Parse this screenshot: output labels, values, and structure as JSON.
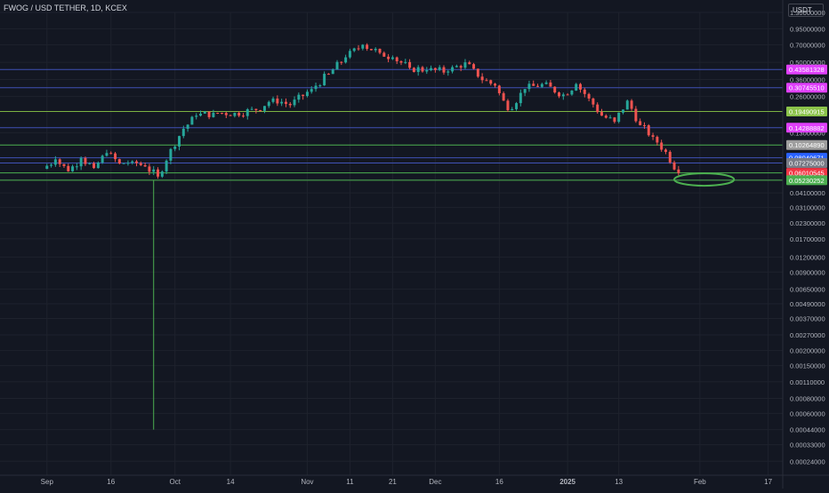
{
  "header": {
    "symbol": "FWOG / USD TETHER, 1D, KCEX",
    "currency": "USDT"
  },
  "colors": {
    "background": "#131722",
    "up": "#26a69a",
    "down": "#ef5350",
    "green_line": "#4caf50",
    "blue_line": "#3f51b5",
    "grid": "#1e222d"
  },
  "chart_data": {
    "type": "candlestick",
    "y_scale": "log",
    "y_range": [
      0.0002,
      1.3
    ],
    "x_range": [
      "2024-08-21",
      "2025-02-20"
    ],
    "y_ticks": [
      "1.30000000",
      "0.95000000",
      "0.70000000",
      "0.50000000",
      "0.36000000",
      "0.26000000",
      "0.13000000",
      "0.07300000",
      "0.05300000",
      "0.04100000",
      "0.03100000",
      "0.02300000",
      "0.01700000",
      "0.01200000",
      "0.00900000",
      "0.00650000",
      "0.00490000",
      "0.00370000",
      "0.00270000",
      "0.00200000",
      "0.00150000",
      "0.00110000",
      "0.00080000",
      "0.00060000",
      "0.00044000",
      "0.00033000",
      "0.00024000"
    ],
    "x_ticks": [
      {
        "label": "Sep",
        "date": "2024-09-01"
      },
      {
        "label": "16",
        "date": "2024-09-16"
      },
      {
        "label": "Oct",
        "date": "2024-10-01"
      },
      {
        "label": "14",
        "date": "2024-10-14"
      },
      {
        "label": "Nov",
        "date": "2024-11-01"
      },
      {
        "label": "11",
        "date": "2024-11-11"
      },
      {
        "label": "21",
        "date": "2024-11-21"
      },
      {
        "label": "Dec",
        "date": "2024-12-01"
      },
      {
        "label": "16",
        "date": "2024-12-16"
      },
      {
        "label": "2025",
        "date": "2025-01-01"
      },
      {
        "label": "13",
        "date": "2025-01-13"
      },
      {
        "label": "Feb",
        "date": "2025-02-01"
      },
      {
        "label": "17",
        "date": "2025-02-17"
      }
    ],
    "price_labels": [
      {
        "value": "0.43581328",
        "color": "#e040fb"
      },
      {
        "value": "0.30745510",
        "color": "#e040fb"
      },
      {
        "value": "0.19490915",
        "color": "#8bc34a"
      },
      {
        "value": "0.14288882",
        "color": "#e040fb"
      },
      {
        "value": "0.10264890",
        "color": "#9e9e9e"
      },
      {
        "value": "0.08040671",
        "color": "#2962ff"
      },
      {
        "value": "0.07275000",
        "color": "#787b86"
      },
      {
        "value": "0.06010545",
        "color": "#f23645"
      },
      {
        "value": "0.05230252",
        "color": "#4caf50"
      }
    ],
    "horizontal_lines": [
      {
        "value": 0.43581328,
        "color": "#3f51b5"
      },
      {
        "value": 0.3074551,
        "color": "#3f51b5"
      },
      {
        "value": 0.19490915,
        "color": "#7cb342"
      },
      {
        "value": 0.14288882,
        "color": "#3f51b5"
      },
      {
        "value": 0.1026489,
        "color": "#4caf50"
      },
      {
        "value": 0.08040671,
        "color": "#3f51b5"
      },
      {
        "value": 0.07275,
        "color": "#3f51b5"
      },
      {
        "value": 0.06010545,
        "color": "#4caf50"
      },
      {
        "value": 0.05230252,
        "color": "#4caf50"
      }
    ],
    "vertical_line": {
      "date": "2024-09-26",
      "from": 0.05230252,
      "to": 0.00044,
      "color": "#4caf50"
    },
    "ellipse": {
      "date_from": "2025-01-26",
      "date_to": "2025-02-09",
      "value": 0.053,
      "color": "#4caf50"
    },
    "price_path": [
      {
        "date": "2024-08-31",
        "close": 0.065
      },
      {
        "date": "2024-09-03",
        "close": 0.078
      },
      {
        "date": "2024-09-06",
        "close": 0.062
      },
      {
        "date": "2024-09-09",
        "close": 0.08
      },
      {
        "date": "2024-09-12",
        "close": 0.066
      },
      {
        "date": "2024-09-15",
        "close": 0.088
      },
      {
        "date": "2024-09-18",
        "close": 0.072
      },
      {
        "date": "2024-09-21",
        "close": 0.075
      },
      {
        "date": "2024-09-24",
        "close": 0.068
      },
      {
        "date": "2024-09-27",
        "close": 0.056
      },
      {
        "date": "2024-09-30",
        "close": 0.095
      },
      {
        "date": "2024-10-03",
        "close": 0.14
      },
      {
        "date": "2024-10-06",
        "close": 0.18
      },
      {
        "date": "2024-10-10",
        "close": 0.19
      },
      {
        "date": "2024-10-15",
        "close": 0.19
      },
      {
        "date": "2024-10-20",
        "close": 0.2
      },
      {
        "date": "2024-10-24",
        "close": 0.25
      },
      {
        "date": "2024-10-28",
        "close": 0.22
      },
      {
        "date": "2024-11-02",
        "close": 0.3
      },
      {
        "date": "2024-11-06",
        "close": 0.4
      },
      {
        "date": "2024-11-10",
        "close": 0.55
      },
      {
        "date": "2024-11-14",
        "close": 0.7
      },
      {
        "date": "2024-11-18",
        "close": 0.6
      },
      {
        "date": "2024-11-21",
        "close": 0.55
      },
      {
        "date": "2024-11-25",
        "close": 0.45
      },
      {
        "date": "2024-11-29",
        "close": 0.43
      },
      {
        "date": "2024-12-04",
        "close": 0.42
      },
      {
        "date": "2024-12-08",
        "close": 0.5
      },
      {
        "date": "2024-12-11",
        "close": 0.38
      },
      {
        "date": "2024-12-15",
        "close": 0.32
      },
      {
        "date": "2024-12-18",
        "close": 0.2
      },
      {
        "date": "2024-12-22",
        "close": 0.3
      },
      {
        "date": "2024-12-26",
        "close": 0.33
      },
      {
        "date": "2024-12-31",
        "close": 0.27
      },
      {
        "date": "2025-01-03",
        "close": 0.33
      },
      {
        "date": "2025-01-06",
        "close": 0.25
      },
      {
        "date": "2025-01-09",
        "close": 0.18
      },
      {
        "date": "2025-01-12",
        "close": 0.16
      },
      {
        "date": "2025-01-15",
        "close": 0.24
      },
      {
        "date": "2025-01-18",
        "close": 0.15
      },
      {
        "date": "2025-01-21",
        "close": 0.12
      },
      {
        "date": "2025-01-24",
        "close": 0.09
      },
      {
        "date": "2025-01-27",
        "close": 0.06
      }
    ]
  }
}
